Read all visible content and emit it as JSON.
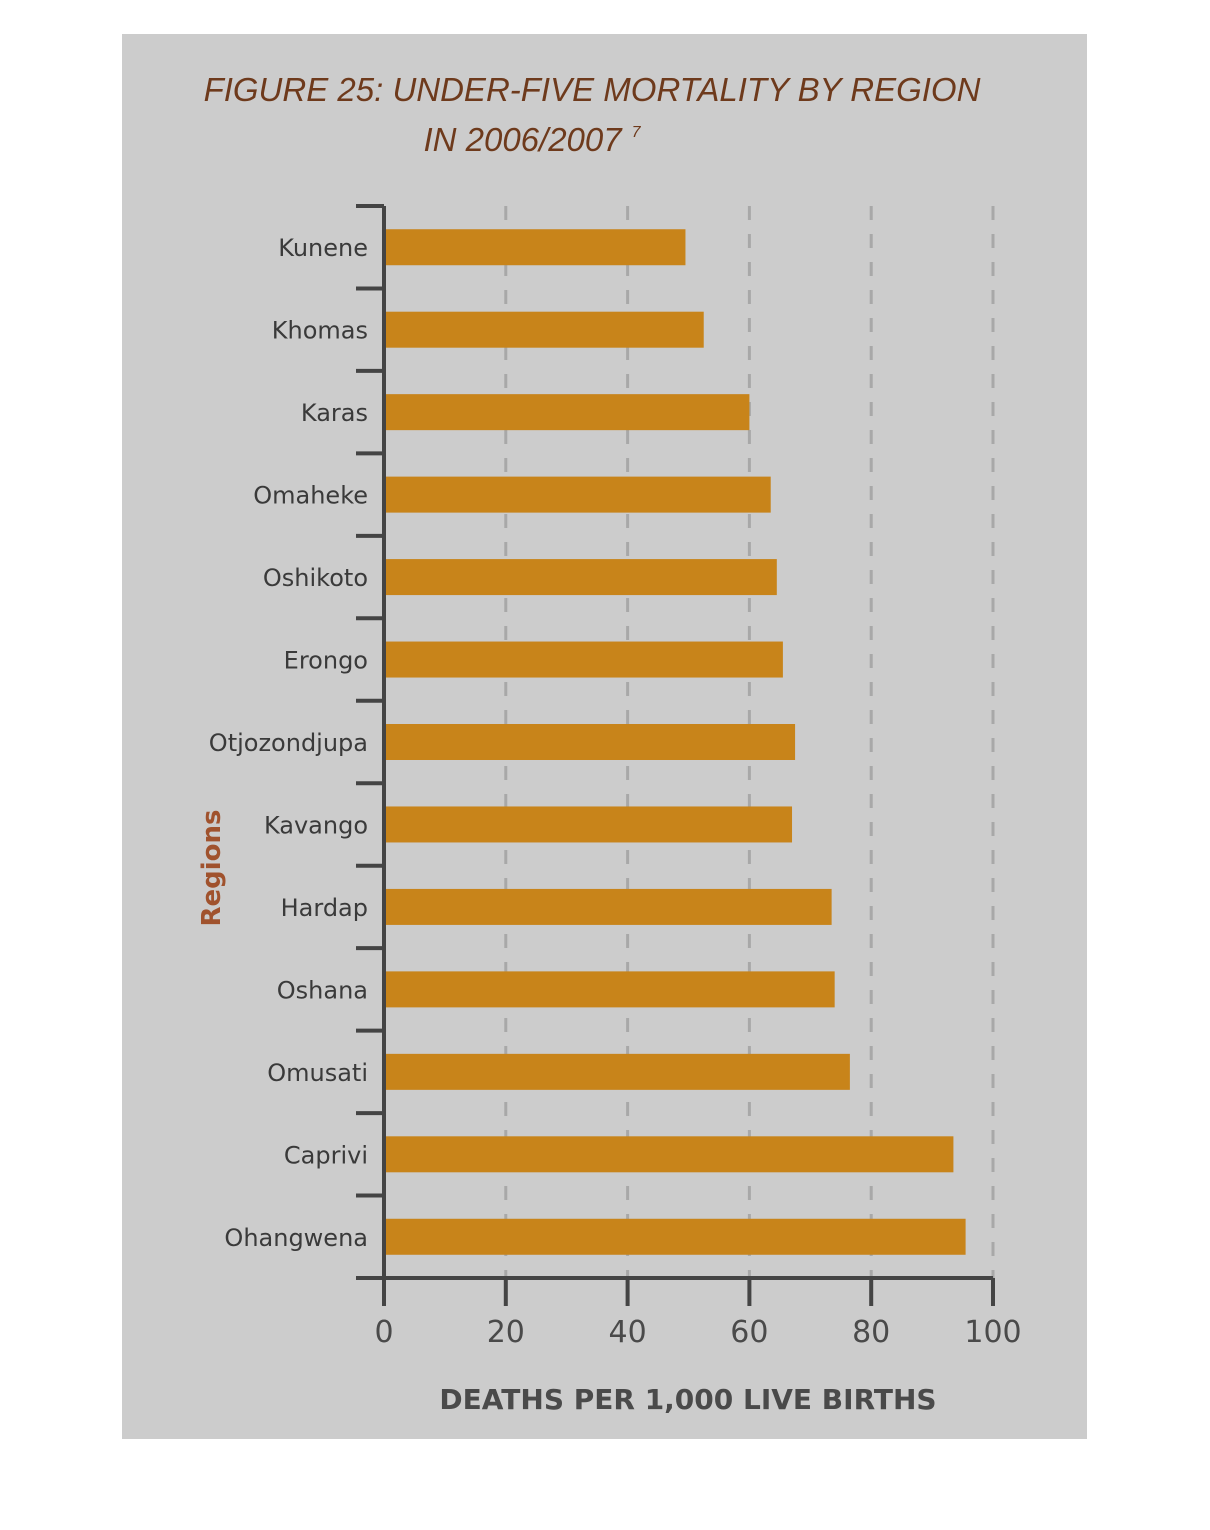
{
  "chart_data": {
    "type": "bar",
    "orientation": "horizontal",
    "title_line1": "FIGURE 25: UNDER-FIVE MORTALITY BY REGION",
    "title_line2": "IN 2006/2007",
    "title_superscript": "7",
    "xlabel": "DEATHS PER 1,000 LIVE BIRTHS",
    "ylabel": "Regions",
    "xlim": [
      0,
      100
    ],
    "xticks": [
      "0",
      "20",
      "40",
      "60",
      "80",
      "100"
    ],
    "grid": "vertical dashed at 20, 40, 60, 80, 100",
    "categories": [
      "Kunene",
      "Khomas",
      "Karas",
      "Omaheke",
      "Oshikoto",
      "Erongo",
      "Otjozondjupa",
      "Kavango",
      "Hardap",
      "Oshana",
      "Omusati",
      "Caprivi",
      "Ohangwena"
    ],
    "values": [
      49.5,
      52.5,
      60,
      63.5,
      64.5,
      65.5,
      67.5,
      67,
      73.5,
      74,
      76.5,
      93.5,
      95.5
    ],
    "colors": {
      "bar": "#c8841a",
      "panel": "#cccccc",
      "axis": "#444444",
      "grid": "#a8a8a8",
      "title": "#6e3a1c",
      "ylabel": "#a0522d"
    }
  }
}
